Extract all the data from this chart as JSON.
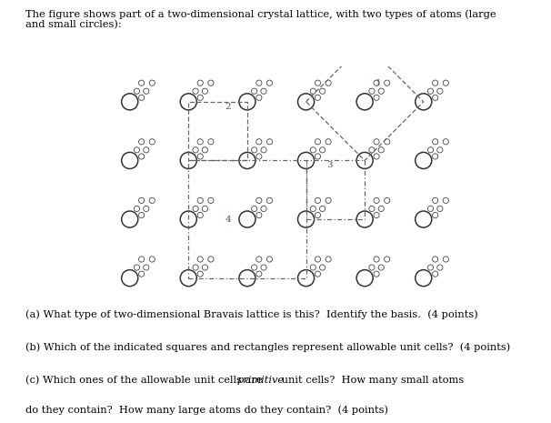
{
  "title_text": "The figure shows part of a two-dimensional crystal lattice, with two types of atoms (large\nand small circles):",
  "question_a": "(a) What type of two-dimensional Bravais lattice is this?  Identify the basis.  (4 points)",
  "question_b": "(b) Which of the indicated squares and rectangles represent allowable unit cells?  (4 points)",
  "question_c_part1": "(c) Which ones of the allowable unit cells are ",
  "question_c_italic": "primitive",
  "question_c_part2": " unit cells?  How many small atoms\ndo they contain?  How many large atoms do they contain?  (4 points)",
  "bg_color": "#ffffff",
  "text_color": "#000000",
  "large_circle_edge": "#333333",
  "small_circle_edge": "#444444",
  "box_color_dotted": "#666666",
  "label_1_color": "#b04010",
  "label_2_color": "#555555",
  "label_3_color": "#2255aa",
  "label_4_color": "#2255aa",
  "fig_width": 5.87,
  "fig_height": 4.4
}
